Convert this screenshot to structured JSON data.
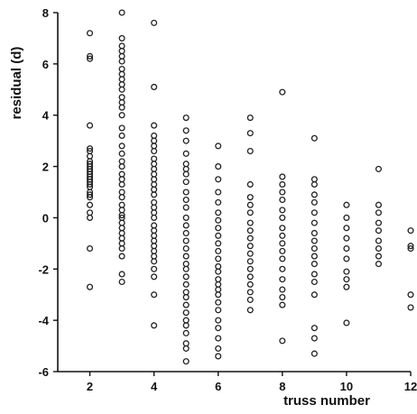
{
  "chart_data": {
    "type": "scatter",
    "title": "",
    "xlabel": "truss number",
    "ylabel": "residual (d)",
    "xlim": [
      1,
      12
    ],
    "ylim": [
      -6,
      8
    ],
    "xticks": [
      2,
      4,
      6,
      8,
      10,
      12
    ],
    "yticks": [
      -6,
      -4,
      -2,
      0,
      2,
      4,
      6,
      8
    ],
    "grid": false,
    "legend": "none",
    "marker": "open-circle",
    "marker_color": "#222222",
    "series": [
      {
        "x": 2,
        "y": [
          7.2,
          6.3,
          6.2,
          3.6,
          2.7,
          2.6,
          2.4,
          2.2,
          2.1,
          2.0,
          1.9,
          1.8,
          1.7,
          1.6,
          1.5,
          1.4,
          1.3,
          1.2,
          1.0,
          0.9,
          0.8,
          0.5,
          0.2,
          0.0,
          -1.2,
          -2.7
        ]
      },
      {
        "x": 3,
        "y": [
          8.0,
          7.0,
          6.7,
          6.5,
          6.3,
          6.1,
          5.8,
          5.6,
          5.4,
          5.2,
          5.0,
          4.7,
          4.5,
          4.3,
          4.0,
          3.5,
          3.2,
          2.8,
          2.5,
          2.2,
          2.0,
          1.7,
          1.5,
          1.3,
          1.0,
          0.8,
          0.5,
          0.3,
          0.1,
          0.0,
          -0.2,
          -0.4,
          -0.6,
          -0.8,
          -1.0,
          -1.2,
          -1.5,
          -2.2,
          -2.5
        ]
      },
      {
        "x": 4,
        "y": [
          7.6,
          5.1,
          3.6,
          3.2,
          3.0,
          2.8,
          2.6,
          2.3,
          2.1,
          1.9,
          1.7,
          1.5,
          1.3,
          1.1,
          0.9,
          0.6,
          0.4,
          0.2,
          0.0,
          -0.3,
          -0.5,
          -0.7,
          -0.9,
          -1.1,
          -1.3,
          -1.5,
          -1.7,
          -2.0,
          -2.3,
          -3.0,
          -4.2
        ]
      },
      {
        "x": 5,
        "y": [
          3.9,
          3.4,
          3.0,
          2.5,
          2.1,
          1.9,
          1.7,
          1.4,
          1.0,
          0.7,
          0.4,
          0.0,
          -0.3,
          -0.6,
          -0.9,
          -1.2,
          -1.5,
          -1.8,
          -2.0,
          -2.3,
          -2.6,
          -2.9,
          -3.1,
          -3.4,
          -3.7,
          -4.0,
          -4.2,
          -4.5,
          -4.9,
          -5.1,
          -5.6
        ]
      },
      {
        "x": 6,
        "y": [
          2.8,
          2.0,
          1.5,
          1.0,
          0.6,
          0.2,
          -0.1,
          -0.4,
          -0.7,
          -1.0,
          -1.3,
          -1.6,
          -1.9,
          -2.1,
          -2.4,
          -2.6,
          -2.8,
          -3.0,
          -3.3,
          -3.6,
          -4.0,
          -4.3,
          -4.7,
          -5.1,
          -5.4
        ]
      },
      {
        "x": 7,
        "y": [
          3.9,
          3.3,
          2.6,
          1.3,
          0.8,
          0.5,
          0.2,
          -0.2,
          -0.5,
          -0.8,
          -1.1,
          -1.4,
          -1.7,
          -2.0,
          -2.3,
          -2.6,
          -2.9,
          -3.2,
          -3.6
        ]
      },
      {
        "x": 8,
        "y": [
          4.9,
          1.6,
          1.3,
          1.0,
          0.7,
          0.3,
          0.0,
          -0.4,
          -0.7,
          -1.0,
          -1.3,
          -1.6,
          -2.0,
          -2.4,
          -2.8,
          -3.1,
          -3.4,
          -4.8
        ]
      },
      {
        "x": 9,
        "y": [
          3.1,
          1.5,
          1.3,
          0.9,
          0.6,
          0.2,
          -0.2,
          -0.6,
          -0.9,
          -1.2,
          -1.5,
          -1.8,
          -2.2,
          -2.5,
          -3.0,
          -4.3,
          -4.7,
          -5.3
        ]
      },
      {
        "x": 10,
        "y": [
          0.5,
          0.0,
          -0.4,
          -0.8,
          -1.2,
          -1.6,
          -2.1,
          -2.4,
          -2.7,
          -4.1
        ]
      },
      {
        "x": 11,
        "y": [
          1.9,
          0.5,
          0.2,
          -0.2,
          -0.5,
          -0.9,
          -1.2,
          -1.5,
          -1.8
        ]
      },
      {
        "x": 12,
        "y": [
          -0.5,
          -1.1,
          -1.2,
          -3.0,
          -3.5
        ]
      }
    ]
  }
}
